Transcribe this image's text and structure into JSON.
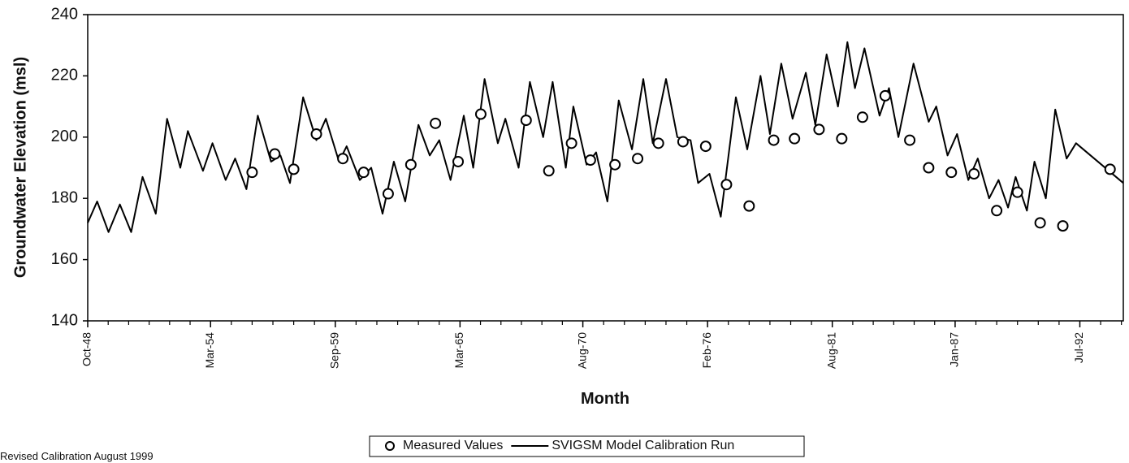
{
  "chart_data": {
    "type": "line",
    "x_label": "Month",
    "y_label": "Groundwater Elevation (msl)",
    "note": "Revised Calibration August 1999",
    "xlim": [
      "1948-10",
      "1994-06"
    ],
    "xticks": [
      {
        "value": "1948-10",
        "label": "Oct-48"
      },
      {
        "value": "1954-03",
        "label": "Mar-54"
      },
      {
        "value": "1959-09",
        "label": "Sep-59"
      },
      {
        "value": "1965-03",
        "label": "Mar-65"
      },
      {
        "value": "1970-08",
        "label": "Aug-70"
      },
      {
        "value": "1976-02",
        "label": "Feb-76"
      },
      {
        "value": "1981-08",
        "label": "Aug-81"
      },
      {
        "value": "1987-01",
        "label": "Jan-87"
      },
      {
        "value": "1992-07",
        "label": "Jul-92"
      }
    ],
    "ylim": [
      140,
      240
    ],
    "yticks": [
      140,
      160,
      180,
      200,
      220,
      240
    ],
    "series": [
      {
        "name": "Measured Values",
        "mode": "markers",
        "color": "#000000",
        "x": [
          "1956-01",
          "1957-01",
          "1957-11",
          "1958-11",
          "1960-01",
          "1960-12",
          "1962-01",
          "1963-01",
          "1964-02",
          "1965-02",
          "1966-02",
          "1968-02",
          "1969-02",
          "1970-02",
          "1970-12",
          "1972-01",
          "1973-01",
          "1973-12",
          "1975-01",
          "1976-01",
          "1976-12",
          "1977-12",
          "1979-01",
          "1979-12",
          "1981-01",
          "1982-01",
          "1982-12",
          "1983-12",
          "1985-01",
          "1985-11",
          "1986-11",
          "1987-11",
          "1988-11",
          "1989-10",
          "1990-10",
          "1991-10",
          "1993-11"
        ],
        "values": [
          188.5,
          194.5,
          189.5,
          201,
          193,
          188.5,
          181.5,
          191,
          204.5,
          192,
          207.5,
          205.5,
          189,
          198,
          192.5,
          191,
          193,
          198,
          198.5,
          197,
          184.5,
          177.5,
          199,
          199.5,
          202.5,
          199.5,
          206.5,
          213.5,
          199,
          190,
          188.5,
          188,
          176,
          182,
          172,
          171,
          189.5
        ]
      },
      {
        "name": "SVIGSM Model Calibration Run",
        "mode": "line",
        "color": "#000000",
        "x": [
          "1948-10",
          "1949-03",
          "1949-09",
          "1950-03",
          "1950-09",
          "1951-03",
          "1951-10",
          "1952-04",
          "1952-11",
          "1953-03",
          "1953-11",
          "1954-04",
          "1954-11",
          "1955-04",
          "1955-10",
          "1956-04",
          "1956-11",
          "1957-04",
          "1957-09",
          "1958-04",
          "1958-11",
          "1959-04",
          "1959-11",
          "1960-03",
          "1960-10",
          "1961-04",
          "1961-10",
          "1962-04",
          "1962-10",
          "1963-05",
          "1963-11",
          "1964-04",
          "1964-10",
          "1965-05",
          "1965-10",
          "1966-04",
          "1966-11",
          "1967-03",
          "1967-10",
          "1968-04",
          "1968-11",
          "1969-04",
          "1969-11",
          "1970-03",
          "1970-10",
          "1971-03",
          "1971-09",
          "1972-03",
          "1972-10",
          "1973-04",
          "1973-09",
          "1974-04",
          "1974-10",
          "1975-05",
          "1975-09",
          "1976-03",
          "1976-09",
          "1977-05",
          "1977-11",
          "1978-06",
          "1978-11",
          "1979-05",
          "1979-11",
          "1980-06",
          "1980-11",
          "1981-05",
          "1981-11",
          "1982-04",
          "1982-08",
          "1983-01",
          "1983-09",
          "1984-02",
          "1984-07",
          "1985-03",
          "1985-11",
          "1986-03",
          "1986-09",
          "1987-02",
          "1987-08",
          "1988-01",
          "1988-07",
          "1988-12",
          "1989-05",
          "1989-09",
          "1990-03",
          "1990-07",
          "1991-01",
          "1991-06",
          "1991-12",
          "1992-05",
          "1994-06"
        ],
        "values": [
          172,
          179,
          169,
          178,
          169,
          187,
          175,
          206,
          190,
          202,
          189,
          198,
          186,
          193,
          183,
          207,
          192,
          194,
          185,
          213,
          199,
          206,
          192,
          197,
          186,
          190,
          175,
          192,
          179,
          204,
          194,
          199,
          186,
          207,
          190,
          219,
          198,
          206,
          190,
          218,
          200,
          218,
          190,
          210,
          191,
          195,
          179,
          212,
          196,
          219,
          198,
          219,
          200,
          199,
          185,
          188,
          174,
          213,
          196,
          220,
          201,
          224,
          206,
          221,
          204,
          227,
          210,
          231,
          216,
          229,
          207,
          216,
          200,
          224,
          205,
          210,
          194,
          201,
          186,
          193,
          180,
          186,
          177,
          187,
          176,
          192,
          180,
          209,
          193,
          198,
          185
        ]
      }
    ]
  }
}
